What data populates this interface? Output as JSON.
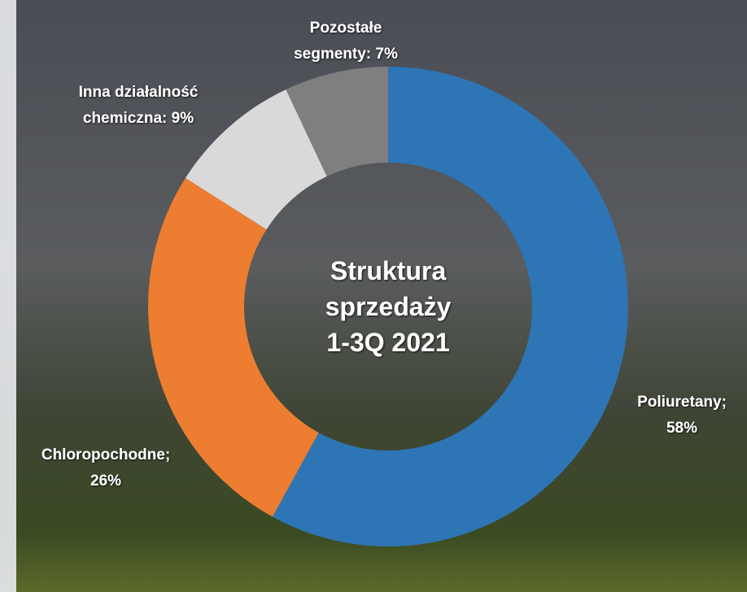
{
  "chart_data": {
    "type": "pie",
    "title": [
      "Struktura",
      "sprzedaży",
      "1-3Q 2021"
    ],
    "values": [
      58,
      26,
      9,
      7
    ],
    "value_labels": [
      [
        "Poliuretany;",
        "58%"
      ],
      [
        "Chloropochodne;",
        "26%"
      ],
      [
        "Inna działalność",
        "chemiczna: 9%"
      ],
      [
        "Pozostałe",
        "segmenty: 7%"
      ]
    ],
    "colors": [
      "#2e75b6",
      "#ed7d31",
      "#d9d9d9",
      "#7f7f7f"
    ]
  }
}
